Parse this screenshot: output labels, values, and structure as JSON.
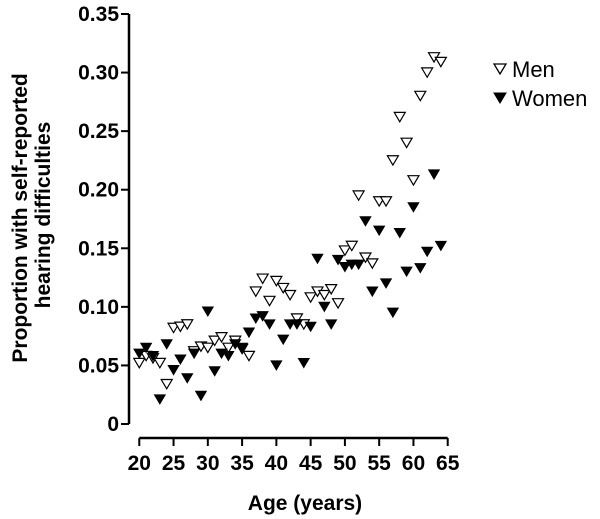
{
  "chart_data": {
    "type": "scatter",
    "xlabel": "Age (years)",
    "ylabel_lines": [
      "Proportion with self-reported",
      "hearing difficulties"
    ],
    "xlim": [
      18.5,
      66.5
    ],
    "ylim": [
      0,
      0.35
    ],
    "xticks": [
      20,
      25,
      30,
      35,
      40,
      45,
      50,
      55,
      60,
      65
    ],
    "xtick_labels": [
      "20",
      "25",
      "30",
      "35",
      "40",
      "45",
      "50",
      "55",
      "60",
      "65"
    ],
    "yticks": [
      0,
      0.05,
      0.1,
      0.15,
      0.2,
      0.25,
      0.3,
      0.35
    ],
    "ytick_labels": [
      "0",
      "0.05",
      "0.10",
      "0.15",
      "0.20",
      "0.25",
      "0.30",
      "0.35"
    ],
    "legend_position": "top-right",
    "series": [
      {
        "name": "Men",
        "marker": "open-down-triangle",
        "points": [
          [
            20,
            0.052
          ],
          [
            21,
            0.058
          ],
          [
            22,
            0.056
          ],
          [
            23,
            0.052
          ],
          [
            24,
            0.034
          ],
          [
            25,
            0.082
          ],
          [
            26,
            0.083
          ],
          [
            27,
            0.085
          ],
          [
            28,
            0.062
          ],
          [
            29,
            0.066
          ],
          [
            30,
            0.065
          ],
          [
            31,
            0.071
          ],
          [
            32,
            0.074
          ],
          [
            33,
            0.065
          ],
          [
            34,
            0.071
          ],
          [
            35,
            0.064
          ],
          [
            36,
            0.058
          ],
          [
            37,
            0.113
          ],
          [
            38,
            0.124
          ],
          [
            39,
            0.105
          ],
          [
            40,
            0.122
          ],
          [
            41,
            0.116
          ],
          [
            42,
            0.11
          ],
          [
            43,
            0.09
          ],
          [
            44,
            0.085
          ],
          [
            45,
            0.108
          ],
          [
            46,
            0.113
          ],
          [
            47,
            0.11
          ],
          [
            48,
            0.115
          ],
          [
            49,
            0.103
          ],
          [
            50,
            0.148
          ],
          [
            51,
            0.152
          ],
          [
            52,
            0.195
          ],
          [
            53,
            0.142
          ],
          [
            54,
            0.137
          ],
          [
            55,
            0.19
          ],
          [
            56,
            0.19
          ],
          [
            57,
            0.225
          ],
          [
            58,
            0.262
          ],
          [
            59,
            0.24
          ],
          [
            60,
            0.208
          ],
          [
            61,
            0.28
          ],
          [
            62,
            0.3
          ],
          [
            63,
            0.313
          ],
          [
            64,
            0.309
          ]
        ]
      },
      {
        "name": "Women",
        "marker": "filled-down-triangle",
        "points": [
          [
            20,
            0.06
          ],
          [
            21,
            0.065
          ],
          [
            22,
            0.058
          ],
          [
            23,
            0.021
          ],
          [
            24,
            0.068
          ],
          [
            25,
            0.046
          ],
          [
            26,
            0.055
          ],
          [
            27,
            0.039
          ],
          [
            28,
            0.06
          ],
          [
            29,
            0.024
          ],
          [
            30,
            0.096
          ],
          [
            31,
            0.045
          ],
          [
            32,
            0.06
          ],
          [
            33,
            0.058
          ],
          [
            34,
            0.068
          ],
          [
            35,
            0.065
          ],
          [
            36,
            0.078
          ],
          [
            37,
            0.09
          ],
          [
            38,
            0.092
          ],
          [
            39,
            0.085
          ],
          [
            40,
            0.05
          ],
          [
            41,
            0.072
          ],
          [
            42,
            0.085
          ],
          [
            43,
            0.085
          ],
          [
            44,
            0.052
          ],
          [
            45,
            0.083
          ],
          [
            46,
            0.141
          ],
          [
            47,
            0.1
          ],
          [
            48,
            0.085
          ],
          [
            49,
            0.14
          ],
          [
            50,
            0.134
          ],
          [
            51,
            0.136
          ],
          [
            52,
            0.136
          ],
          [
            53,
            0.173
          ],
          [
            54,
            0.113
          ],
          [
            55,
            0.165
          ],
          [
            56,
            0.12
          ],
          [
            57,
            0.095
          ],
          [
            58,
            0.163
          ],
          [
            59,
            0.13
          ],
          [
            60,
            0.185
          ],
          [
            61,
            0.133
          ],
          [
            62,
            0.147
          ],
          [
            63,
            0.213
          ],
          [
            64,
            0.152
          ]
        ]
      }
    ]
  }
}
